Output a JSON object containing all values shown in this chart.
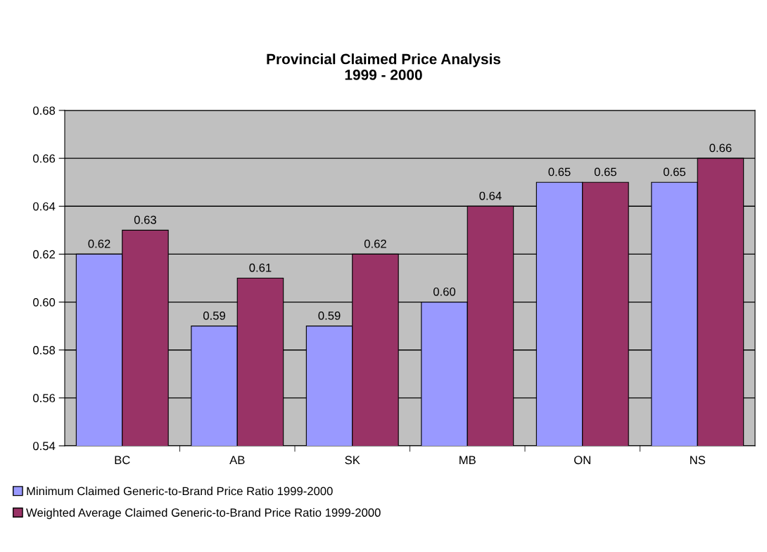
{
  "chart_data": {
    "type": "bar",
    "title": "Provincial Claimed Price Analysis\n1999 - 2000",
    "categories": [
      "BC",
      "AB",
      "SK",
      "MB",
      "ON",
      "NS"
    ],
    "series": [
      {
        "name": "Minimum Claimed Generic-to-Brand Price Ratio 1999-2000",
        "color": "#9999ff",
        "values": [
          0.62,
          0.59,
          0.59,
          0.6,
          0.65,
          0.65
        ],
        "value_labels": [
          "0.62",
          "0.59",
          "0.59",
          "0.60",
          "0.65",
          "0.65"
        ]
      },
      {
        "name": "Weighted Average Claimed Generic-to-Brand Price Ratio 1999-2000",
        "color": "#993366",
        "values": [
          0.63,
          0.61,
          0.62,
          0.64,
          0.65,
          0.66
        ],
        "value_labels": [
          "0.63",
          "0.61",
          "0.62",
          "0.64",
          "0.65",
          "0.66"
        ]
      }
    ],
    "ylim": [
      0.54,
      0.68
    ],
    "yticks": [
      {
        "value": 0.54,
        "label": "0.54"
      },
      {
        "value": 0.56,
        "label": "0.56"
      },
      {
        "value": 0.58,
        "label": "0.58"
      },
      {
        "value": 0.6,
        "label": "0.60"
      },
      {
        "value": 0.62,
        "label": "0.62"
      },
      {
        "value": 0.64,
        "label": "0.64"
      },
      {
        "value": 0.66,
        "label": "0.66"
      },
      {
        "value": 0.68,
        "label": "0.68"
      }
    ],
    "grid": "y",
    "legend": "bottom left"
  }
}
